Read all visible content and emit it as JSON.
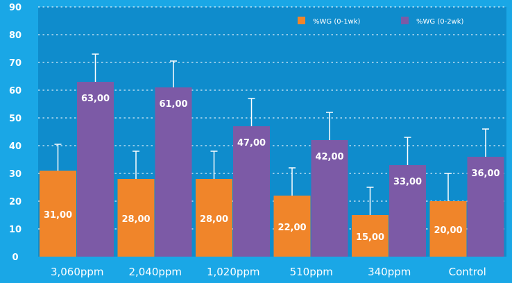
{
  "chart_data": {
    "type": "bar",
    "categories": [
      "3,060ppm",
      "2,040ppm",
      "1,020ppm",
      "510ppm",
      "340ppm",
      "Control"
    ],
    "series": [
      {
        "name": "%WG (0-1wk)",
        "color": "#f0852a",
        "values": [
          31,
          28,
          28,
          22,
          15,
          20
        ],
        "error": [
          9.5,
          10,
          10,
          10,
          10,
          10
        ],
        "labels": [
          "31,00",
          "28,00",
          "28,00",
          "22,00",
          "15,00",
          "20,00"
        ]
      },
      {
        "name": "%WG (0-2wk)",
        "color": "#7c5aa6",
        "values": [
          63,
          61,
          47,
          42,
          33,
          36
        ],
        "error": [
          10,
          9.5,
          10,
          10,
          10,
          10
        ],
        "labels": [
          "63,00",
          "61,00",
          "47,00",
          "42,00",
          "33,00",
          "36,00"
        ]
      }
    ],
    "yticks": [
      "0",
      "10",
      "20",
      "30",
      "40",
      "50",
      "60",
      "70",
      "80",
      "90"
    ],
    "ylim": [
      0,
      90
    ],
    "grid": true,
    "legend_position": "top-right",
    "plot_background": "#0f8ccc",
    "error_bars": true
  }
}
